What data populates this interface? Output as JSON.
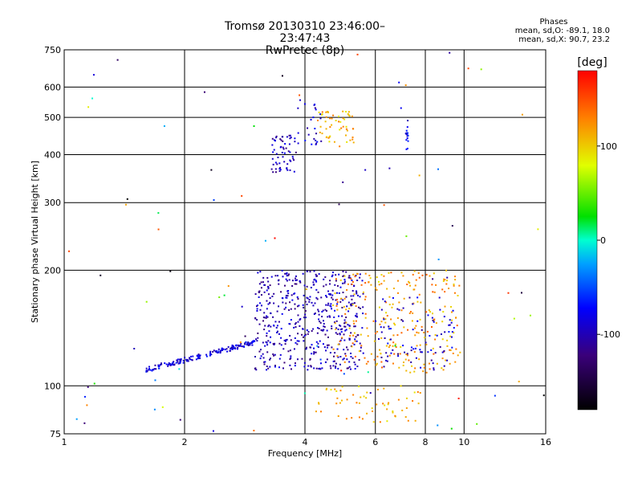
{
  "title": {
    "line1": "Tromsø 20130310 23:46:00–23:47:43",
    "line2": "RwPretec (8p)"
  },
  "stats": {
    "title": "Phases",
    "line1": "mean, sd,O: -89.1, 18.0",
    "line2": "mean, sd,X:  90.7, 23.2"
  },
  "chart_data": {
    "type": "scatter",
    "xlabel": "Frequency [MHz]",
    "ylabel": "Stationary phase Virtual Height [km]",
    "xscale": "log",
    "yscale": "log",
    "xlim": [
      1,
      16
    ],
    "ylim": [
      75,
      750
    ],
    "x_ticks": [
      1,
      2,
      4,
      6,
      8,
      10,
      16
    ],
    "y_ticks": [
      75,
      100,
      200,
      300,
      400,
      500,
      600,
      750
    ],
    "grid": true,
    "colorbar": {
      "label": "[deg]",
      "range": [
        -180,
        180
      ],
      "ticks": [
        100,
        0,
        -100
      ]
    },
    "clusters": [
      {
        "desc": "O-mode trace",
        "x": [
          1.6,
          3.0
        ],
        "y": [
          110,
          130
        ],
        "phase": -85,
        "n": 170,
        "trend": true,
        "jitter": 0.03
      },
      {
        "desc": "F1/F2 O cloud",
        "x": [
          3.0,
          5.6
        ],
        "y": [
          110,
          200
        ],
        "phase": -100,
        "n": 520
      },
      {
        "desc": "upper O",
        "x": [
          3.3,
          3.8
        ],
        "y": [
          360,
          450
        ],
        "phase": -100,
        "n": 60
      },
      {
        "desc": "upper O 2",
        "x": [
          3.8,
          4.4
        ],
        "y": [
          420,
          560
        ],
        "phase": -90,
        "n": 25
      },
      {
        "desc": "upper X",
        "x": [
          4.3,
          5.3
        ],
        "y": [
          420,
          520
        ],
        "phase": 110,
        "n": 55
      },
      {
        "desc": "X cloud",
        "x": [
          4.7,
          9.8
        ],
        "y": [
          108,
          200
        ],
        "phase": 120,
        "n": 260
      },
      {
        "desc": "O cloud hi freq",
        "x": [
          6.0,
          9.5
        ],
        "y": [
          110,
          170
        ],
        "phase": -90,
        "n": 80
      },
      {
        "desc": "low X",
        "x": [
          4.2,
          7.8
        ],
        "y": [
          80,
          100
        ],
        "phase": 110,
        "n": 60
      },
      {
        "desc": "sparse",
        "x": [
          1.0,
          16.0
        ],
        "y": [
          75,
          750
        ],
        "phase": 0,
        "n": 90,
        "random_phase": true
      },
      {
        "desc": "vertical 7.2",
        "x": [
          7.15,
          7.25
        ],
        "y": [
          380,
          500
        ],
        "phase": -80,
        "n": 15
      }
    ]
  }
}
